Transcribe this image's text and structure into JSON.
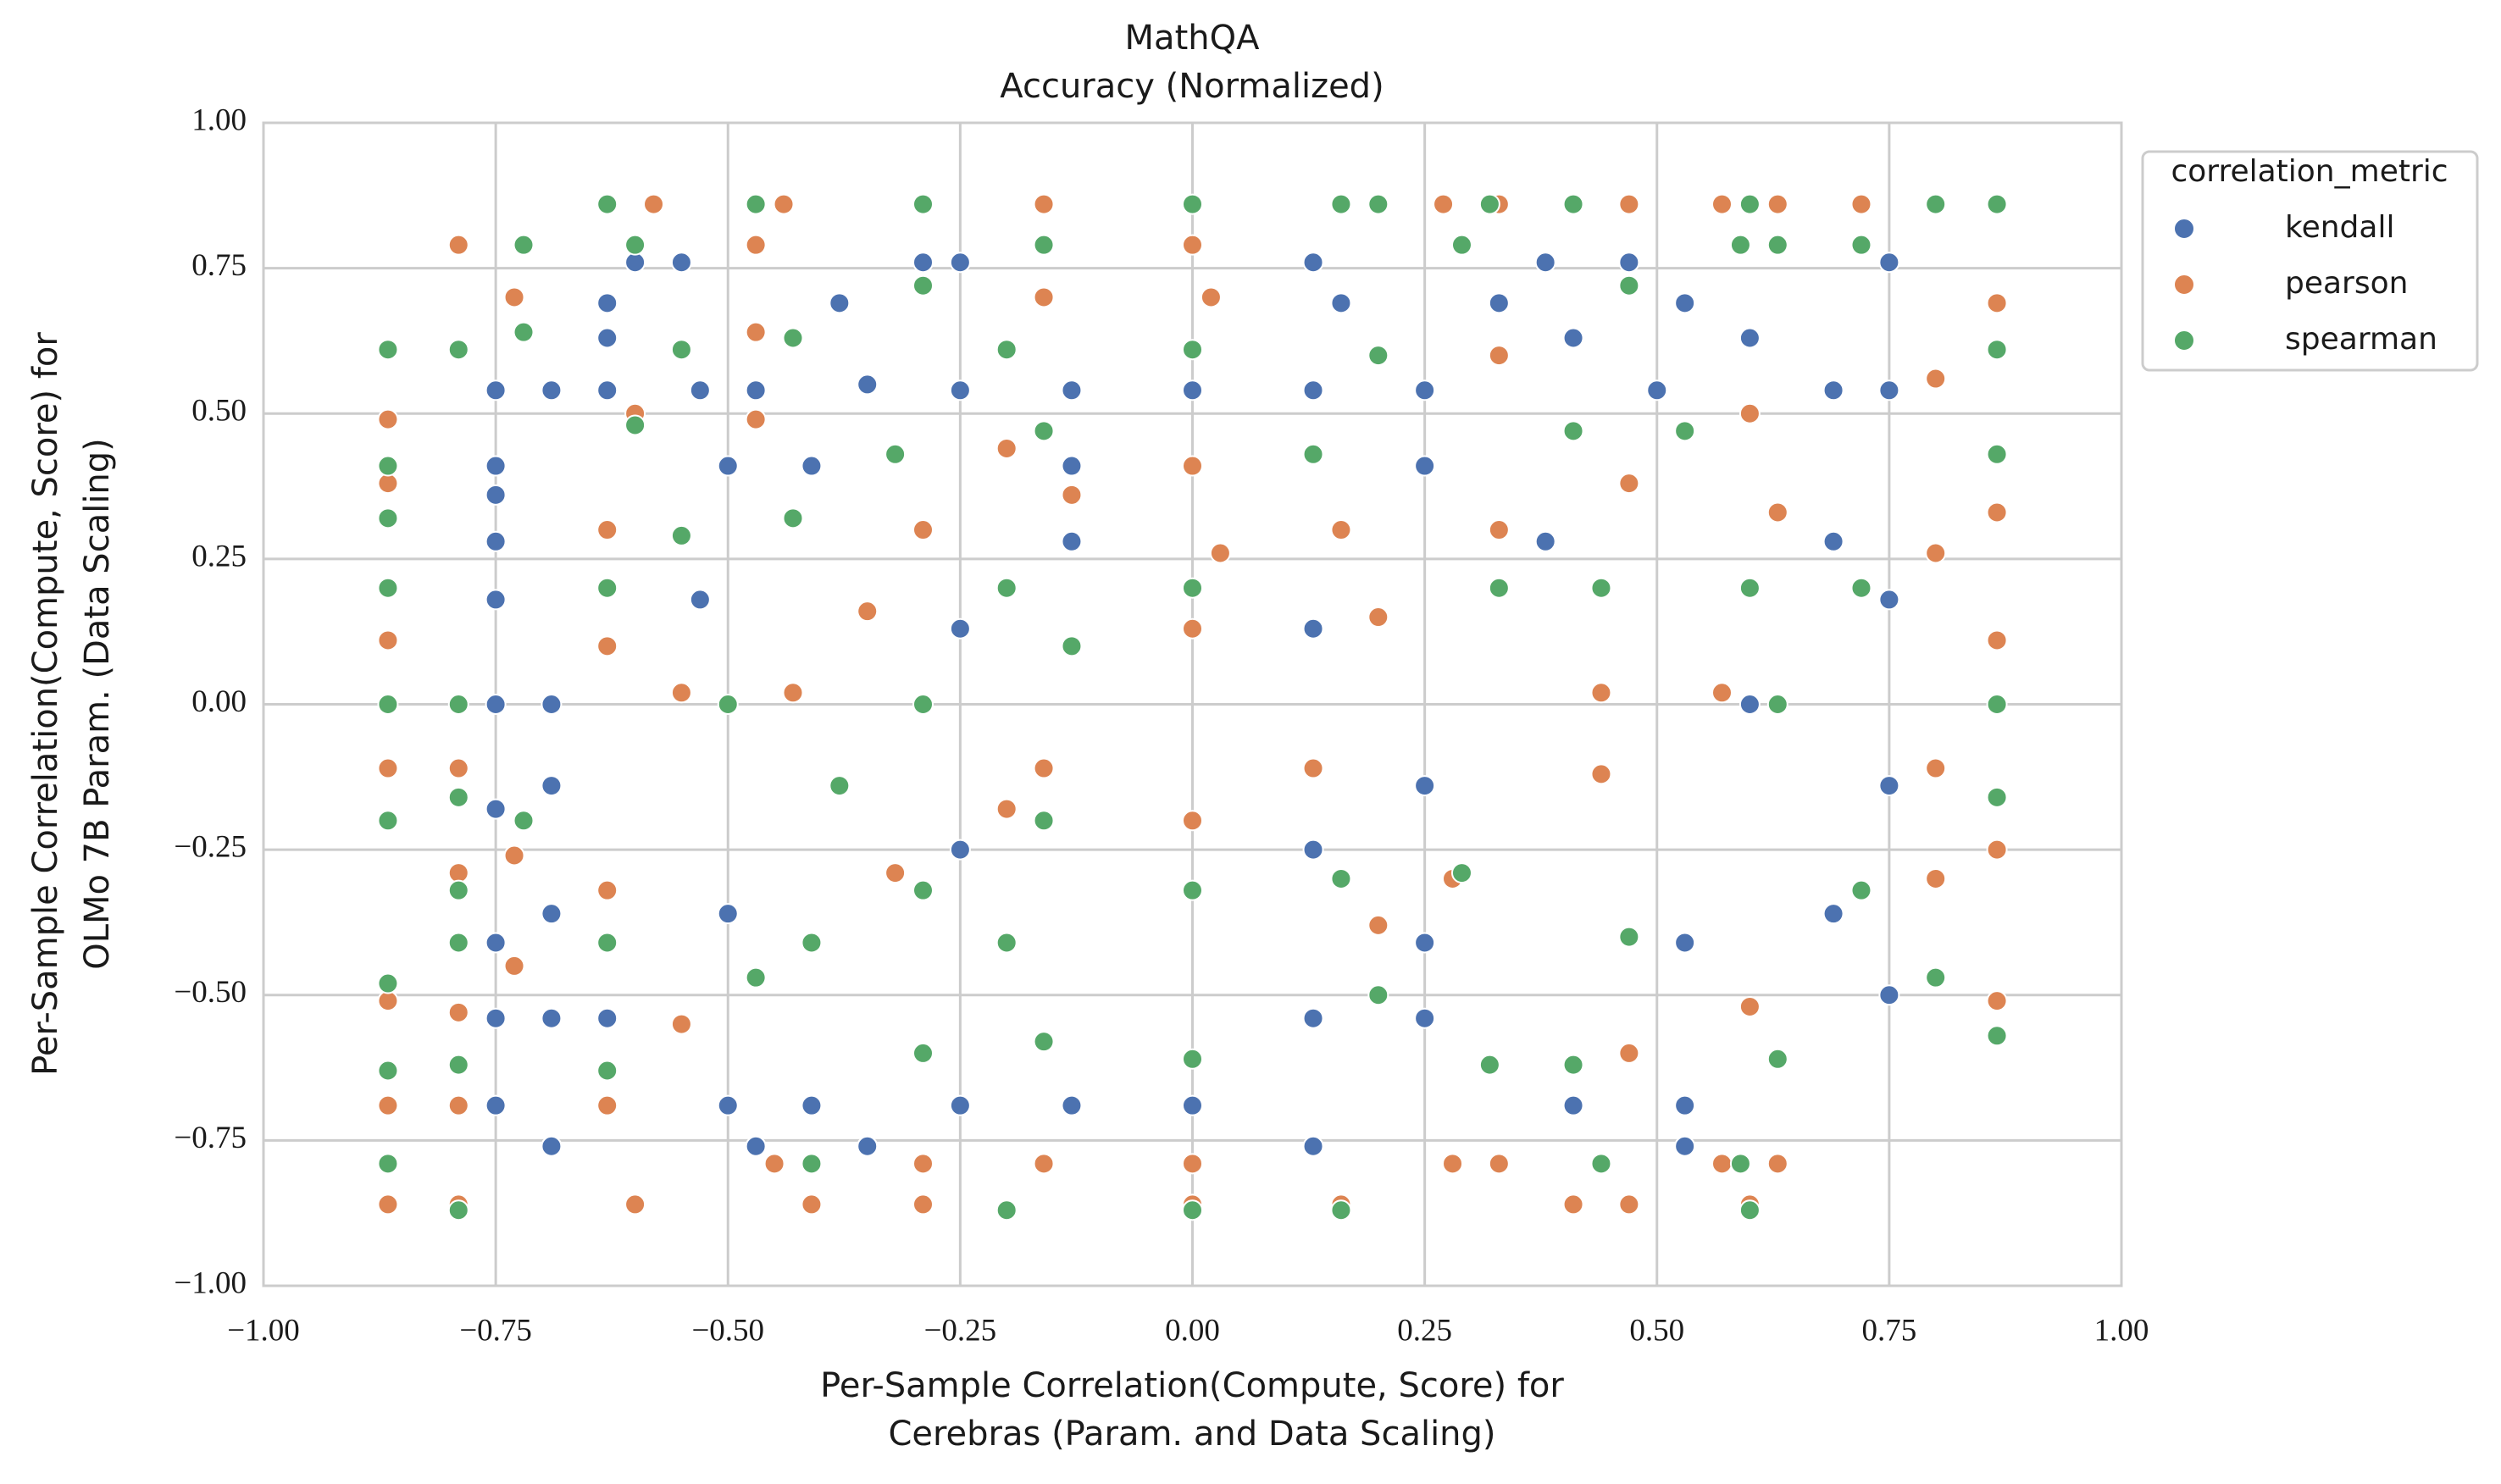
{
  "chart_data": {
    "type": "scatter",
    "title": [
      "MathQA",
      "Accuracy (Normalized)"
    ],
    "xlabel": [
      "Per-Sample Correlation(Compute, Score) for",
      "Cerebras (Param. and Data Scaling)"
    ],
    "ylabel": [
      "Per-Sample Correlation(Compute, Score) for",
      "OLMo 7B Param. (Data Scaling)"
    ],
    "legend_title": "correlation_metric",
    "legend_position": "outside-upper-right",
    "grid": true,
    "xlim": [
      -1,
      1
    ],
    "ylim": [
      -1,
      1
    ],
    "xticks": [
      {
        "value": -1,
        "label": "−1.00"
      },
      {
        "value": -0.75,
        "label": "−0.75"
      },
      {
        "value": -0.5,
        "label": "−0.50"
      },
      {
        "value": -0.25,
        "label": "−0.25"
      },
      {
        "value": 0,
        "label": "0.00"
      },
      {
        "value": 0.25,
        "label": "0.25"
      },
      {
        "value": 0.5,
        "label": "0.50"
      },
      {
        "value": 0.75,
        "label": "0.75"
      },
      {
        "value": 1,
        "label": "1.00"
      }
    ],
    "yticks": [
      {
        "value": -1,
        "label": "−1.00"
      },
      {
        "value": -0.75,
        "label": "−0.75"
      },
      {
        "value": -0.5,
        "label": "−0.50"
      },
      {
        "value": -0.25,
        "label": "−0.25"
      },
      {
        "value": 0,
        "label": "0.00"
      },
      {
        "value": 0.25,
        "label": "0.25"
      },
      {
        "value": 0.5,
        "label": "0.50"
      },
      {
        "value": 0.75,
        "label": "0.75"
      },
      {
        "value": 1,
        "label": "1.00"
      }
    ],
    "series": [
      {
        "name": "kendall",
        "color": "#4c72b0",
        "x": [
          -0.75,
          -0.75,
          -0.75,
          -0.75,
          -0.75,
          -0.75,
          -0.75,
          -0.75,
          -0.75,
          -0.75,
          -0.69,
          -0.69,
          -0.69,
          -0.69,
          -0.69,
          -0.69,
          -0.63,
          -0.63,
          -0.63,
          -0.63,
          -0.6,
          -0.55,
          -0.53,
          -0.53,
          -0.5,
          -0.5,
          -0.5,
          -0.47,
          -0.47,
          -0.41,
          -0.41,
          -0.38,
          -0.35,
          -0.35,
          -0.29,
          -0.25,
          -0.25,
          -0.25,
          -0.25,
          -0.25,
          -0.13,
          -0.13,
          -0.13,
          -0.13,
          0,
          0,
          0.13,
          0.13,
          0.13,
          0.13,
          0.13,
          0.13,
          0.16,
          0.25,
          0.25,
          0.25,
          0.25,
          0.25,
          0.33,
          0.38,
          0.38,
          0.41,
          0.41,
          0.47,
          0.5,
          0.53,
          0.53,
          0.53,
          0.53,
          0.6,
          0.6,
          0.69,
          0.69,
          0.69,
          0.75,
          0.75,
          0.75,
          0.75,
          0.75
        ],
        "y": [
          0.54,
          0.41,
          0.36,
          0.28,
          0.18,
          0,
          -0.18,
          -0.41,
          -0.54,
          -0.69,
          0.54,
          0,
          -0.14,
          -0.36,
          -0.54,
          -0.76,
          0.69,
          0.54,
          0.63,
          -0.54,
          0.76,
          0.76,
          0.54,
          0.18,
          0.41,
          -0.36,
          -0.69,
          0.54,
          -0.76,
          0.41,
          -0.69,
          0.69,
          0.55,
          -0.76,
          0.76,
          0.76,
          0.54,
          0.13,
          -0.25,
          -0.69,
          0.54,
          0.41,
          0.28,
          -0.69,
          0.54,
          -0.69,
          0.76,
          0.54,
          0.13,
          -0.25,
          -0.54,
          -0.76,
          0.69,
          0.54,
          0.41,
          -0.14,
          -0.41,
          -0.54,
          0.69,
          0.76,
          0.28,
          0.63,
          -0.69,
          0.76,
          0.54,
          0.69,
          -0.41,
          -0.69,
          -0.76,
          0.63,
          0,
          0.54,
          0.28,
          -0.36,
          0.76,
          0.54,
          0.18,
          -0.14,
          -0.5
        ]
      },
      {
        "name": "pearson",
        "color": "#dd8452",
        "x": [
          -0.866,
          -0.866,
          -0.866,
          -0.866,
          -0.866,
          -0.866,
          -0.866,
          -0.79,
          -0.79,
          -0.79,
          -0.79,
          -0.79,
          -0.79,
          -0.73,
          -0.73,
          -0.73,
          -0.63,
          -0.63,
          -0.63,
          -0.63,
          -0.63,
          -0.6,
          -0.6,
          -0.58,
          -0.55,
          -0.55,
          -0.47,
          -0.47,
          -0.47,
          -0.45,
          -0.44,
          -0.43,
          -0.41,
          -0.35,
          -0.32,
          -0.29,
          -0.29,
          -0.29,
          -0.2,
          -0.2,
          -0.16,
          -0.16,
          -0.16,
          -0.16,
          -0.13,
          0,
          0,
          0,
          0,
          0,
          0,
          0.02,
          0.03,
          0.13,
          0.16,
          0.16,
          0.16,
          0.2,
          0.2,
          0.27,
          0.28,
          0.28,
          0.33,
          0.33,
          0.33,
          0.33,
          0.41,
          0.41,
          0.44,
          0.44,
          0.47,
          0.47,
          0.47,
          0.47,
          0.57,
          0.57,
          0.57,
          0.6,
          0.6,
          0.6,
          0.63,
          0.63,
          0.63,
          0.72,
          0.8,
          0.8,
          0.8,
          0.8,
          0.866,
          0.866,
          0.866,
          0.866,
          0.866,
          0.866
        ],
        "y": [
          0.49,
          0.38,
          0.11,
          -0.11,
          -0.51,
          -0.69,
          -0.86,
          0.79,
          -0.11,
          -0.29,
          -0.53,
          -0.69,
          -0.86,
          0.7,
          -0.26,
          -0.45,
          0.86,
          0.3,
          0.1,
          -0.32,
          -0.69,
          -0.86,
          0.5,
          0.86,
          0.02,
          -0.55,
          0.79,
          0.64,
          0.49,
          -0.79,
          0.86,
          0.02,
          -0.86,
          0.16,
          -0.29,
          0.3,
          -0.79,
          -0.86,
          0.44,
          -0.18,
          0.86,
          0.7,
          -0.11,
          -0.79,
          0.36,
          0.79,
          0.41,
          0.13,
          -0.2,
          -0.79,
          -0.86,
          0.7,
          0.26,
          -0.11,
          0.86,
          0.3,
          -0.86,
          0.15,
          -0.38,
          0.86,
          -0.3,
          -0.79,
          0.86,
          0.6,
          0.3,
          -0.79,
          0.86,
          -0.86,
          0.02,
          -0.12,
          0.86,
          0.38,
          -0.6,
          -0.86,
          0.86,
          0.02,
          -0.79,
          0.5,
          -0.86,
          -0.52,
          0.86,
          0.33,
          -0.79,
          0.86,
          0.56,
          0.26,
          -0.11,
          -0.3,
          0.86,
          0.69,
          0.33,
          0.11,
          -0.25,
          -0.51
        ]
      },
      {
        "name": "spearman",
        "color": "#55a868",
        "x": [
          -0.866,
          -0.866,
          -0.866,
          -0.866,
          -0.866,
          -0.866,
          -0.866,
          -0.866,
          -0.866,
          -0.79,
          -0.79,
          -0.79,
          -0.79,
          -0.79,
          -0.79,
          -0.79,
          -0.72,
          -0.72,
          -0.72,
          -0.63,
          -0.63,
          -0.63,
          -0.63,
          -0.6,
          -0.6,
          -0.55,
          -0.55,
          -0.5,
          -0.47,
          -0.47,
          -0.43,
          -0.43,
          -0.41,
          -0.41,
          -0.38,
          -0.32,
          -0.29,
          -0.29,
          -0.29,
          -0.29,
          -0.29,
          -0.2,
          -0.2,
          -0.2,
          -0.2,
          -0.16,
          -0.16,
          -0.16,
          -0.16,
          -0.13,
          0,
          0,
          0,
          0,
          0,
          0,
          0.13,
          0.16,
          0.16,
          0.16,
          0.2,
          0.2,
          0.2,
          0.29,
          0.29,
          0.32,
          0.32,
          0.33,
          0.41,
          0.41,
          0.41,
          0.44,
          0.44,
          0.47,
          0.47,
          0.53,
          0.59,
          0.59,
          0.6,
          0.6,
          0.6,
          0.63,
          0.63,
          0.63,
          0.72,
          0.72,
          0.72,
          0.8,
          0.8,
          0.866,
          0.866,
          0.866,
          0.866,
          0.866,
          0.866
        ],
        "y": [
          0.61,
          0.41,
          0.32,
          0.2,
          0,
          -0.2,
          -0.48,
          -0.63,
          -0.79,
          0.61,
          0,
          -0.16,
          -0.32,
          -0.41,
          -0.62,
          -0.87,
          0.79,
          0.64,
          -0.2,
          0.86,
          0.2,
          -0.41,
          -0.63,
          0.79,
          0.48,
          0.61,
          0.29,
          0,
          0.86,
          -0.47,
          0.63,
          0.32,
          -0.41,
          -0.79,
          -0.14,
          0.43,
          0.86,
          0.72,
          0,
          -0.32,
          -0.6,
          0.61,
          0.2,
          -0.41,
          -0.87,
          0.79,
          0.47,
          -0.2,
          -0.58,
          0.1,
          0.86,
          0.61,
          0.2,
          -0.32,
          -0.61,
          -0.87,
          0.43,
          0.86,
          -0.3,
          -0.87,
          0.86,
          0.6,
          -0.5,
          0.79,
          -0.29,
          0.86,
          -0.62,
          0.2,
          0.86,
          0.47,
          -0.62,
          0.2,
          -0.79,
          0.72,
          -0.4,
          0.47,
          0.79,
          -0.79,
          0.86,
          0.2,
          -0.87,
          0.79,
          0,
          -0.61,
          0.79,
          0.2,
          -0.32,
          0.86,
          -0.47,
          0.86,
          0.61,
          0.43,
          0,
          -0.16,
          -0.57
        ]
      }
    ]
  }
}
